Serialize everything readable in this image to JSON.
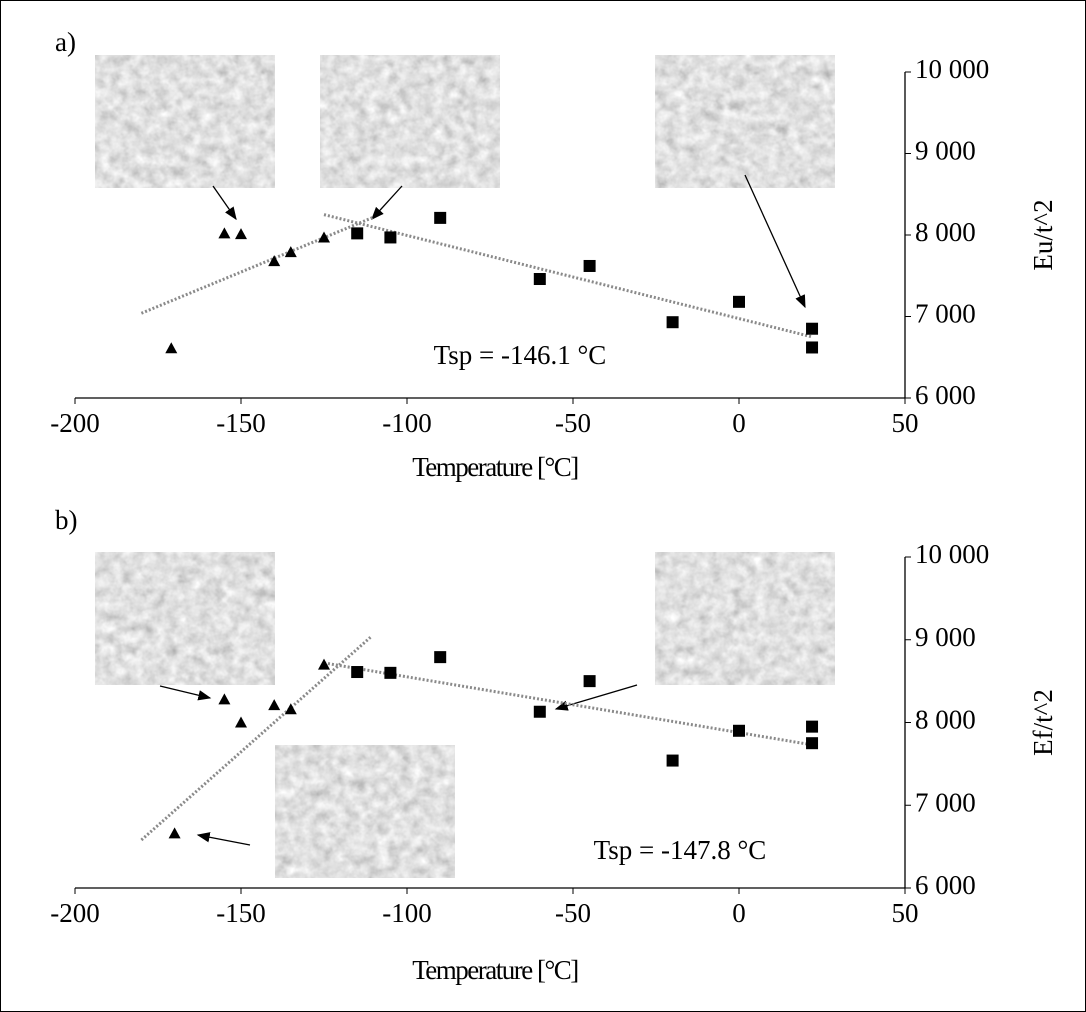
{
  "chart_data": [
    {
      "type": "scatter",
      "panel_label": "a)",
      "xlabel": "Temperature [°C]",
      "ylabel": "Eu/t^2",
      "annotation": "Tsp = -146.1 °C",
      "xlim": [
        -200,
        50
      ],
      "ylim": [
        6000,
        10000
      ],
      "xticks": [
        -200,
        -150,
        -100,
        -50,
        0,
        50
      ],
      "yticks": [
        {
          "value": 6000,
          "label": "6 000"
        },
        {
          "value": 7000,
          "label": "7 000"
        },
        {
          "value": 8000,
          "label": "8 000"
        },
        {
          "value": 9000,
          "label": "9 000"
        },
        {
          "value": 10000,
          "label": "10 000"
        }
      ],
      "series": [
        {
          "marker": "triangle",
          "color": "#000000",
          "x": [
            -171,
            -155,
            -150,
            -140,
            -135,
            -125
          ],
          "values": [
            6610,
            8020,
            8010,
            7680,
            7790,
            7970
          ]
        },
        {
          "marker": "square",
          "color": "#000000",
          "x": [
            -115,
            -105,
            -90,
            -60,
            -45,
            -20,
            0,
            22,
            22
          ],
          "values": [
            8020,
            7970,
            8210,
            7460,
            7620,
            6930,
            7180,
            6850,
            6620
          ]
        }
      ],
      "fit_lines": [
        {
          "x": [
            -180,
            -110
          ],
          "values": [
            7040,
            8220
          ]
        },
        {
          "x": [
            -125,
            22
          ],
          "values": [
            8250,
            6750
          ]
        }
      ],
      "fit_color": "#8a8a8a"
    },
    {
      "type": "scatter",
      "panel_label": "b)",
      "xlabel": "Temperature [°C]",
      "ylabel": "Ef/t^2",
      "annotation": "Tsp = -147.8 °C",
      "xlim": [
        -200,
        50
      ],
      "ylim": [
        6000,
        10000
      ],
      "xticks": [
        -200,
        -150,
        -100,
        -50,
        0,
        50
      ],
      "yticks": [
        {
          "value": 6000,
          "label": "6 000"
        },
        {
          "value": 7000,
          "label": "7 000"
        },
        {
          "value": 8000,
          "label": "8 000"
        },
        {
          "value": 9000,
          "label": "9 000"
        },
        {
          "value": 10000,
          "label": "10 000"
        }
      ],
      "series": [
        {
          "marker": "triangle",
          "color": "#000000",
          "x": [
            -170,
            -155,
            -150,
            -140,
            -135,
            -125
          ],
          "values": [
            6660,
            8280,
            8000,
            8210,
            8160,
            8700
          ]
        },
        {
          "marker": "square",
          "color": "#000000",
          "x": [
            -115,
            -105,
            -90,
            -60,
            -45,
            -20,
            0,
            22,
            22
          ],
          "values": [
            8610,
            8600,
            8790,
            8130,
            8500,
            7540,
            7900,
            7950,
            7750
          ]
        }
      ],
      "fit_lines": [
        {
          "x": [
            -180,
            -111
          ],
          "values": [
            6580,
            9030
          ]
        },
        {
          "x": [
            -125,
            22
          ],
          "values": [
            8720,
            7730
          ]
        }
      ],
      "fit_color": "#8a8a8a"
    }
  ]
}
